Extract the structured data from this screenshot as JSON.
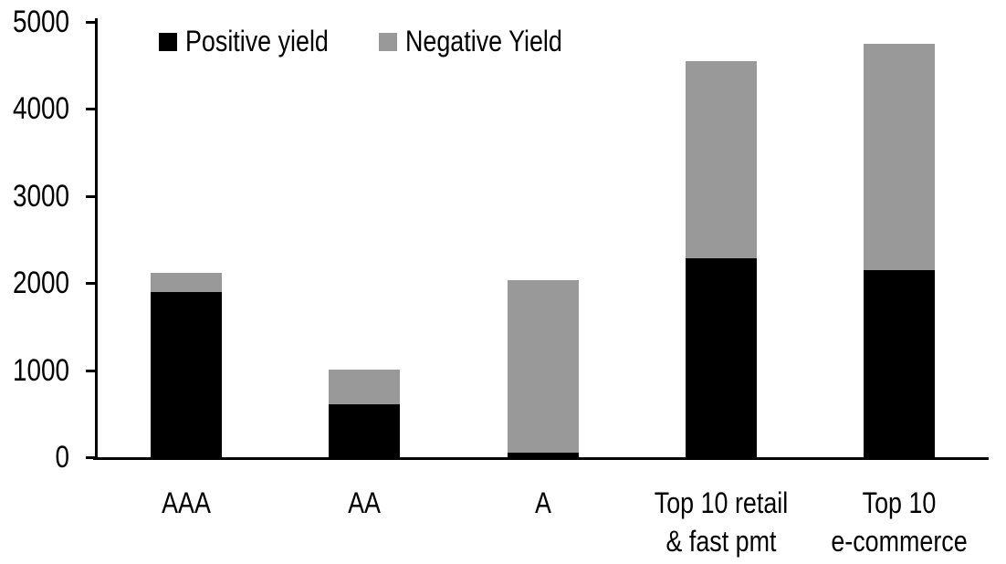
{
  "chart_data": {
    "type": "bar",
    "stacked": true,
    "title": "",
    "xlabel": "",
    "ylabel": "",
    "categories": [
      "AAA",
      "AA",
      "A",
      "Top 10 retail\n& fast pmt",
      "Top 10\ne-commerce"
    ],
    "series": [
      {
        "name": "Positive yield",
        "color": "#000000",
        "values": [
          1900,
          610,
          50,
          2280,
          2150
        ]
      },
      {
        "name": "Negative Yield",
        "color": "#999999",
        "values": [
          220,
          400,
          1980,
          2270,
          2600
        ]
      }
    ],
    "totals": [
      2120,
      1010,
      2030,
      4550,
      4750
    ],
    "ylim": [
      0,
      5000
    ],
    "yticks": [
      0,
      1000,
      2000,
      3000,
      4000,
      5000
    ],
    "grid": false,
    "legend_position": "top",
    "background_color": "#ffffff",
    "axis_color": "#000000"
  },
  "legend": {
    "items": [
      {
        "label": "Positive yield",
        "color": "#000000"
      },
      {
        "label": "Negative Yield",
        "color": "#999999"
      }
    ]
  }
}
